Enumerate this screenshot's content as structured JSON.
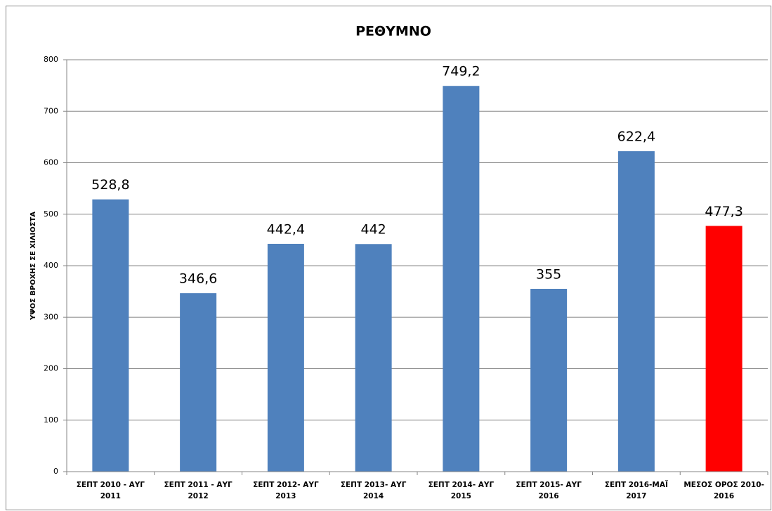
{
  "chart_data": {
    "type": "bar",
    "title": "ΡΕΘΥΜΝΟ",
    "y_label": "ΥΨΟΣ ΒΡΟΧΗΣ ΣΕ ΧΙΛΙΟΣΤΑ",
    "categories": [
      "ΣΕΠΤ 2010 - ΑΥΓ 2011",
      "ΣΕΠΤ 2011 - ΑΥΓ 2012",
      "ΣΕΠΤ 2012- ΑΥΓ 2013",
      "ΣΕΠΤ 2013- ΑΥΓ 2014",
      "ΣΕΠΤ 2014- ΑΥΓ 2015",
      "ΣΕΠΤ 2015- ΑΥΓ 2016",
      "ΣΕΠΤ 2016-ΜΑΪ 2017",
      "ΜΕΣΟΣ ΟΡΟΣ 2010-2016"
    ],
    "values": [
      528.8,
      346.6,
      442.4,
      442,
      749.2,
      355,
      622.4,
      477.3
    ],
    "value_labels": [
      "528,8",
      "346,6",
      "442,4",
      "442",
      "749,2",
      "355",
      "622,4",
      "477,3"
    ],
    "colors": [
      "#4f81bd",
      "#4f81bd",
      "#4f81bd",
      "#4f81bd",
      "#4f81bd",
      "#4f81bd",
      "#4f81bd",
      "#ff0000"
    ],
    "ylim": [
      0,
      800
    ],
    "yticks": [
      0,
      100,
      200,
      300,
      400,
      500,
      600,
      700,
      800
    ],
    "grid": true
  }
}
